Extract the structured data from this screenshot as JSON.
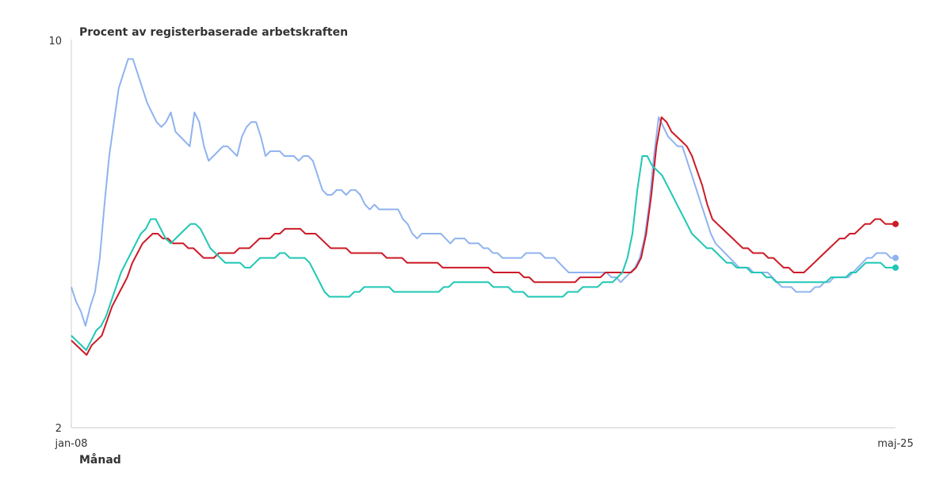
{
  "chart_data": {
    "type": "line",
    "ylabel": "Procent av registerbaserade arbetskraften",
    "xlabel": "Månad",
    "x_start": "jan-08",
    "x_end": "maj-25",
    "x_tick_labels": [
      "jan-08",
      "maj-25"
    ],
    "y_tick_labels": [
      "10",
      "2"
    ],
    "ylim": [
      2,
      10
    ],
    "grid": false,
    "legend": "none",
    "series": [
      {
        "color": "#8fb3ef",
        "values": [
          4.9,
          4.6,
          4.4,
          4.1,
          4.5,
          4.8,
          5.5,
          6.6,
          7.6,
          8.3,
          9.0,
          9.3,
          9.6,
          9.6,
          9.3,
          9.0,
          8.7,
          8.5,
          8.3,
          8.2,
          8.3,
          8.5,
          8.1,
          8.0,
          7.9,
          7.8,
          8.5,
          8.3,
          7.8,
          7.5,
          7.6,
          7.7,
          7.8,
          7.8,
          7.7,
          7.6,
          8.0,
          8.2,
          8.3,
          8.3,
          8.0,
          7.6,
          7.7,
          7.7,
          7.7,
          7.6,
          7.6,
          7.6,
          7.5,
          7.6,
          7.6,
          7.5,
          7.2,
          6.9,
          6.8,
          6.8,
          6.9,
          6.9,
          6.8,
          6.9,
          6.9,
          6.8,
          6.6,
          6.5,
          6.6,
          6.5,
          6.5,
          6.5,
          6.5,
          6.5,
          6.3,
          6.2,
          6.0,
          5.9,
          6.0,
          6.0,
          6.0,
          6.0,
          6.0,
          5.9,
          5.8,
          5.9,
          5.9,
          5.9,
          5.8,
          5.8,
          5.8,
          5.7,
          5.7,
          5.6,
          5.6,
          5.5,
          5.5,
          5.5,
          5.5,
          5.5,
          5.6,
          5.6,
          5.6,
          5.6,
          5.5,
          5.5,
          5.5,
          5.4,
          5.3,
          5.2,
          5.2,
          5.2,
          5.2,
          5.2,
          5.2,
          5.2,
          5.2,
          5.2,
          5.1,
          5.1,
          5.0,
          5.1,
          5.2,
          5.3,
          5.5,
          5.9,
          6.6,
          7.6,
          8.4,
          8.2,
          8.0,
          7.9,
          7.8,
          7.8,
          7.5,
          7.2,
          6.9,
          6.6,
          6.3,
          6.0,
          5.8,
          5.7,
          5.6,
          5.5,
          5.4,
          5.3,
          5.3,
          5.3,
          5.2,
          5.2,
          5.2,
          5.2,
          5.1,
          5.0,
          4.9,
          4.9,
          4.9,
          4.8,
          4.8,
          4.8,
          4.8,
          4.9,
          4.9,
          5.0,
          5.0,
          5.1,
          5.1,
          5.1,
          5.1,
          5.2,
          5.3,
          5.4,
          5.5,
          5.5,
          5.6,
          5.6,
          5.6,
          5.5,
          5.5
        ]
      },
      {
        "color": "#cc1a26",
        "values": [
          3.8,
          3.7,
          3.6,
          3.5,
          3.7,
          3.8,
          3.9,
          4.2,
          4.5,
          4.7,
          4.9,
          5.1,
          5.4,
          5.6,
          5.8,
          5.9,
          6.0,
          6.0,
          5.9,
          5.9,
          5.8,
          5.8,
          5.8,
          5.7,
          5.7,
          5.6,
          5.5,
          5.5,
          5.5,
          5.6,
          5.6,
          5.6,
          5.6,
          5.7,
          5.7,
          5.7,
          5.8,
          5.9,
          5.9,
          5.9,
          6.0,
          6.0,
          6.1,
          6.1,
          6.1,
          6.1,
          6.0,
          6.0,
          6.0,
          5.9,
          5.8,
          5.7,
          5.7,
          5.7,
          5.7,
          5.6,
          5.6,
          5.6,
          5.6,
          5.6,
          5.6,
          5.6,
          5.5,
          5.5,
          5.5,
          5.5,
          5.4,
          5.4,
          5.4,
          5.4,
          5.4,
          5.4,
          5.4,
          5.3,
          5.3,
          5.3,
          5.3,
          5.3,
          5.3,
          5.3,
          5.3,
          5.3,
          5.3,
          5.2,
          5.2,
          5.2,
          5.2,
          5.2,
          5.2,
          5.1,
          5.1,
          5.0,
          5.0,
          5.0,
          5.0,
          5.0,
          5.0,
          5.0,
          5.0,
          5.0,
          5.1,
          5.1,
          5.1,
          5.1,
          5.1,
          5.2,
          5.2,
          5.2,
          5.2,
          5.2,
          5.2,
          5.3,
          5.5,
          6.0,
          6.8,
          7.8,
          8.4,
          8.3,
          8.1,
          8.0,
          7.9,
          7.8,
          7.6,
          7.3,
          7.0,
          6.6,
          6.3,
          6.2,
          6.1,
          6.0,
          5.9,
          5.8,
          5.7,
          5.7,
          5.6,
          5.6,
          5.6,
          5.5,
          5.5,
          5.4,
          5.3,
          5.3,
          5.2,
          5.2,
          5.2,
          5.3,
          5.4,
          5.5,
          5.6,
          5.7,
          5.8,
          5.9,
          5.9,
          6.0,
          6.0,
          6.1,
          6.2,
          6.2,
          6.3,
          6.3,
          6.2,
          6.2,
          6.2
        ]
      },
      {
        "color": "#1fc7b4",
        "values": [
          3.9,
          3.8,
          3.7,
          3.6,
          3.8,
          4.0,
          4.1,
          4.3,
          4.6,
          4.9,
          5.2,
          5.4,
          5.6,
          5.8,
          6.0,
          6.1,
          6.3,
          6.3,
          6.1,
          5.9,
          5.8,
          5.9,
          6.0,
          6.1,
          6.2,
          6.2,
          6.1,
          5.9,
          5.7,
          5.6,
          5.5,
          5.4,
          5.4,
          5.4,
          5.4,
          5.3,
          5.3,
          5.4,
          5.5,
          5.5,
          5.5,
          5.5,
          5.6,
          5.6,
          5.5,
          5.5,
          5.5,
          5.5,
          5.4,
          5.2,
          5.0,
          4.8,
          4.7,
          4.7,
          4.7,
          4.7,
          4.7,
          4.8,
          4.8,
          4.9,
          4.9,
          4.9,
          4.9,
          4.9,
          4.9,
          4.8,
          4.8,
          4.8,
          4.8,
          4.8,
          4.8,
          4.8,
          4.8,
          4.8,
          4.8,
          4.9,
          4.9,
          5.0,
          5.0,
          5.0,
          5.0,
          5.0,
          5.0,
          5.0,
          5.0,
          4.9,
          4.9,
          4.9,
          4.9,
          4.8,
          4.8,
          4.8,
          4.7,
          4.7,
          4.7,
          4.7,
          4.7,
          4.7,
          4.7,
          4.7,
          4.8,
          4.8,
          4.8,
          4.9,
          4.9,
          4.9,
          4.9,
          5.0,
          5.0,
          5.0,
          5.1,
          5.2,
          5.5,
          6.0,
          6.9,
          7.6,
          7.6,
          7.4,
          7.3,
          7.2,
          7.0,
          6.8,
          6.6,
          6.4,
          6.2,
          6.0,
          5.9,
          5.8,
          5.7,
          5.7,
          5.6,
          5.5,
          5.4,
          5.4,
          5.3,
          5.3,
          5.3,
          5.2,
          5.2,
          5.2,
          5.1,
          5.1,
          5.0,
          5.0,
          5.0,
          5.0,
          5.0,
          5.0,
          5.0,
          5.0,
          5.0,
          5.0,
          5.0,
          5.1,
          5.1,
          5.1,
          5.1,
          5.2,
          5.2,
          5.3,
          5.4,
          5.4,
          5.4,
          5.4,
          5.3,
          5.3,
          5.3
        ]
      }
    ]
  }
}
